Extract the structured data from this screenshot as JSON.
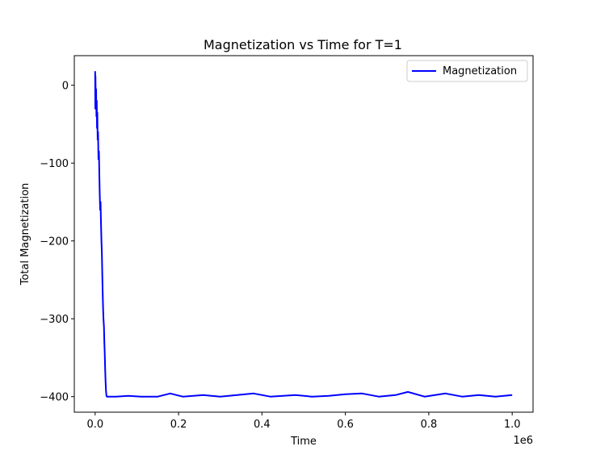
{
  "chart_data": {
    "type": "line",
    "title": "Magnetization vs Time for T=1",
    "xlabel": "Time",
    "ylabel": "Total Magnetization",
    "x_offset_text": "1e6",
    "xlim": [
      -50000,
      1050000
    ],
    "ylim": [
      -420,
      38
    ],
    "x_ticks": [
      0,
      200000,
      400000,
      600000,
      800000,
      1000000
    ],
    "x_tick_labels": [
      "0.0",
      "0.2",
      "0.4",
      "0.6",
      "0.8",
      "1.0"
    ],
    "y_ticks": [
      0,
      -100,
      -200,
      -300,
      -400
    ],
    "y_tick_labels": [
      "0",
      "−100",
      "−200",
      "−300",
      "−400"
    ],
    "grid": false,
    "legend_position": "upper right",
    "series": [
      {
        "name": "Magnetization",
        "color": "#0000ff",
        "points": [
          [
            0,
            18
          ],
          [
            300,
            -30
          ],
          [
            800,
            12
          ],
          [
            1500,
            -25
          ],
          [
            2200,
            -5
          ],
          [
            3000,
            -40
          ],
          [
            3800,
            -20
          ],
          [
            4500,
            -55
          ],
          [
            5200,
            -35
          ],
          [
            6000,
            -70
          ],
          [
            7000,
            -60
          ],
          [
            8000,
            -95
          ],
          [
            9000,
            -85
          ],
          [
            10000,
            -115
          ],
          [
            11000,
            -140
          ],
          [
            12000,
            -160
          ],
          [
            13000,
            -150
          ],
          [
            14000,
            -175
          ],
          [
            15000,
            -200
          ],
          [
            16000,
            -215
          ],
          [
            17000,
            -240
          ],
          [
            18000,
            -265
          ],
          [
            19000,
            -285
          ],
          [
            20000,
            -300
          ],
          [
            21000,
            -310
          ],
          [
            22000,
            -330
          ],
          [
            23000,
            -345
          ],
          [
            24000,
            -365
          ],
          [
            25000,
            -380
          ],
          [
            26000,
            -392
          ],
          [
            27000,
            -399
          ],
          [
            28000,
            -400
          ],
          [
            50000,
            -400
          ],
          [
            80000,
            -399
          ],
          [
            110000,
            -400
          ],
          [
            150000,
            -400
          ],
          [
            180000,
            -396
          ],
          [
            210000,
            -400
          ],
          [
            260000,
            -398
          ],
          [
            300000,
            -400
          ],
          [
            340000,
            -398
          ],
          [
            380000,
            -396
          ],
          [
            420000,
            -400
          ],
          [
            480000,
            -398
          ],
          [
            520000,
            -400
          ],
          [
            560000,
            -399
          ],
          [
            600000,
            -397
          ],
          [
            640000,
            -396
          ],
          [
            680000,
            -400
          ],
          [
            720000,
            -398
          ],
          [
            750000,
            -394
          ],
          [
            790000,
            -400
          ],
          [
            840000,
            -396
          ],
          [
            880000,
            -400
          ],
          [
            920000,
            -398
          ],
          [
            960000,
            -400
          ],
          [
            1000000,
            -398
          ]
        ]
      }
    ]
  }
}
